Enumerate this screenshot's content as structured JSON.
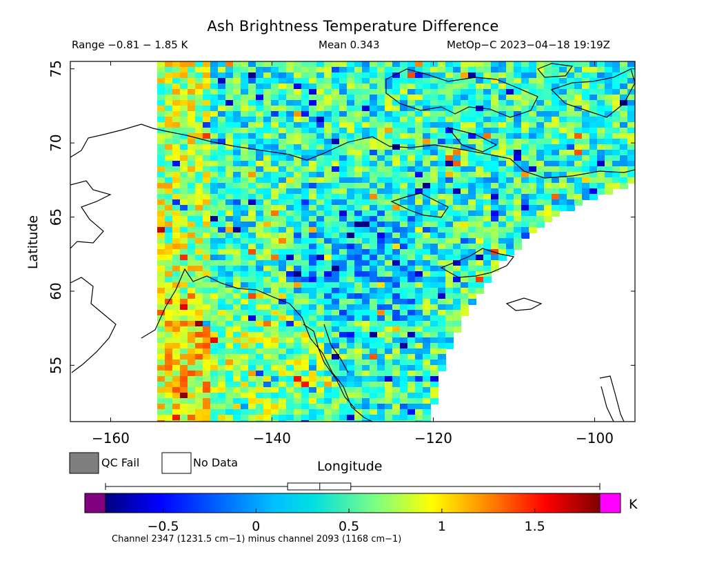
{
  "header": {
    "title": "Ash Brightness Temperature Difference",
    "range": "Range −0.81 − 1.85 K",
    "mean": "Mean 0.343",
    "satellite_time": "MetOp−C 2023−04−18 19:19Z"
  },
  "legend": {
    "qc_fail_label": "QC Fail",
    "no_data_label": "No Data",
    "qc_fail_color": "#7f7f7f",
    "no_data_color": "#ffffff"
  },
  "axes": {
    "xlabel": "Longitude",
    "ylabel": "Latitude",
    "x_ticks": [
      "−160",
      "−140",
      "−120",
      "−100"
    ],
    "y_ticks": [
      "55",
      "60",
      "65",
      "70",
      "75"
    ],
    "lon_range": [
      -165,
      -95
    ],
    "lat_range": [
      51.2,
      75.5
    ]
  },
  "colorbar": {
    "unit": "K",
    "ticks": [
      "−0.5",
      "0",
      "0.5",
      "1",
      "1.5"
    ],
    "range": [
      -0.81,
      1.85
    ],
    "mean": 0.343,
    "box_low": 0.17,
    "box_high": 0.51,
    "under_color": "#800080",
    "over_color": "#ff00ff"
  },
  "footnote": "Channel 2347 (1231.5 cm−1) minus channel 2093 (1168 cm−1)"
}
